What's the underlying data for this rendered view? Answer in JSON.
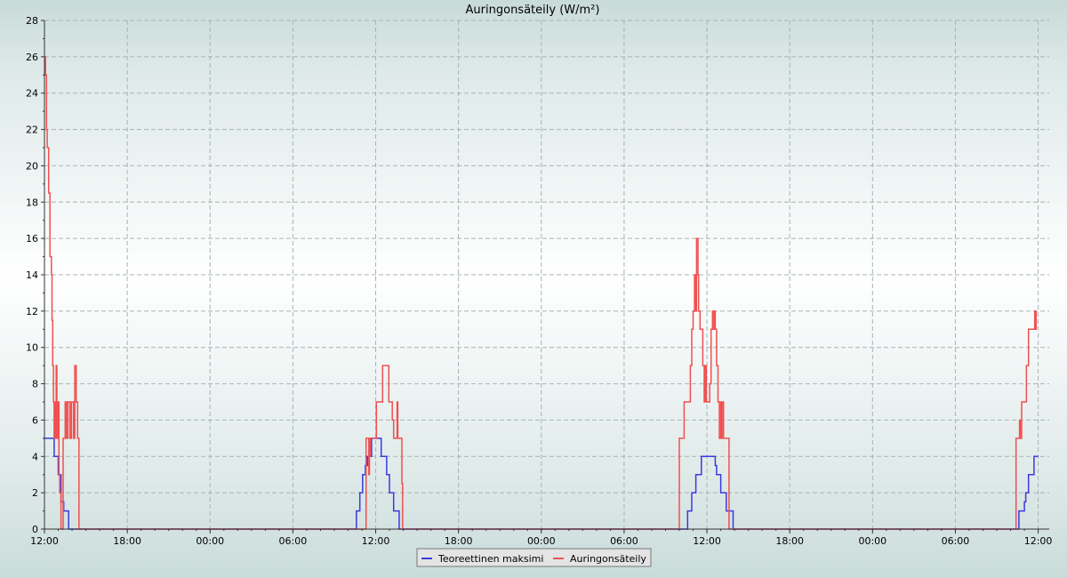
{
  "chart_data": {
    "type": "line",
    "title": "Auringonsäteily (W/m²)",
    "xlabel": "",
    "ylabel": "",
    "ylim": [
      0,
      28
    ],
    "yticks": [
      0,
      2,
      4,
      6,
      8,
      10,
      12,
      14,
      16,
      18,
      20,
      22,
      24,
      26,
      28
    ],
    "x_range_hours": [
      0,
      72.8
    ],
    "xticks": [
      {
        "h": 0,
        "label": "12:00"
      },
      {
        "h": 6,
        "label": "18:00"
      },
      {
        "h": 12,
        "label": "00:00"
      },
      {
        "h": 18,
        "label": "06:00"
      },
      {
        "h": 24,
        "label": "12:00"
      },
      {
        "h": 30,
        "label": "18:00"
      },
      {
        "h": 36,
        "label": "00:00"
      },
      {
        "h": 42,
        "label": "06:00"
      },
      {
        "h": 48,
        "label": "12:00"
      },
      {
        "h": 54,
        "label": "18:00"
      },
      {
        "h": 60,
        "label": "00:00"
      },
      {
        "h": 66,
        "label": "06:00"
      },
      {
        "h": 72,
        "label": "12:00"
      }
    ],
    "grid": true,
    "legend_position": "bottom-center",
    "series": [
      {
        "name": "Teoreettinen maksimi",
        "color": "#3a3ae0",
        "step": true,
        "points": [
          [
            0,
            5
          ],
          [
            0.7,
            5
          ],
          [
            0.7,
            4
          ],
          [
            1.0,
            4
          ],
          [
            1.0,
            3
          ],
          [
            1.2,
            3
          ],
          [
            1.2,
            1.5
          ],
          [
            1.4,
            1.5
          ],
          [
            1.4,
            1
          ],
          [
            1.75,
            1
          ],
          [
            1.75,
            0
          ],
          [
            22.6,
            0
          ],
          [
            22.6,
            1
          ],
          [
            22.85,
            1
          ],
          [
            22.85,
            2
          ],
          [
            23.05,
            2
          ],
          [
            23.05,
            3
          ],
          [
            23.25,
            3
          ],
          [
            23.25,
            3.5
          ],
          [
            23.4,
            3.5
          ],
          [
            23.4,
            4
          ],
          [
            23.7,
            4
          ],
          [
            23.7,
            5
          ],
          [
            24.4,
            5
          ],
          [
            24.4,
            4
          ],
          [
            24.8,
            4
          ],
          [
            24.8,
            3
          ],
          [
            25.0,
            3
          ],
          [
            25.0,
            2
          ],
          [
            25.3,
            2
          ],
          [
            25.3,
            1
          ],
          [
            25.7,
            1
          ],
          [
            25.7,
            0
          ],
          [
            46.6,
            0
          ],
          [
            46.6,
            1
          ],
          [
            46.9,
            1
          ],
          [
            46.9,
            2
          ],
          [
            47.2,
            2
          ],
          [
            47.2,
            3
          ],
          [
            47.6,
            3
          ],
          [
            47.6,
            4
          ],
          [
            48.6,
            4
          ],
          [
            48.6,
            3.5
          ],
          [
            48.7,
            3.5
          ],
          [
            48.7,
            3
          ],
          [
            49.0,
            3
          ],
          [
            49.0,
            2
          ],
          [
            49.4,
            2
          ],
          [
            49.4,
            1
          ],
          [
            49.9,
            1
          ],
          [
            49.9,
            0
          ],
          [
            70.6,
            0
          ],
          [
            70.6,
            1
          ],
          [
            71.0,
            1
          ],
          [
            71.0,
            1.5
          ],
          [
            71.1,
            1.5
          ],
          [
            71.1,
            2
          ],
          [
            71.3,
            2
          ],
          [
            71.3,
            3
          ],
          [
            71.7,
            3
          ],
          [
            71.7,
            4
          ],
          [
            72.0,
            4
          ]
        ]
      },
      {
        "name": "Auringonsäteily",
        "color": "#f05050",
        "step": true,
        "points": [
          [
            0,
            26
          ],
          [
            0.08,
            26
          ],
          [
            0.08,
            25
          ],
          [
            0.15,
            25
          ],
          [
            0.15,
            22
          ],
          [
            0.2,
            22
          ],
          [
            0.2,
            21
          ],
          [
            0.3,
            21
          ],
          [
            0.3,
            18.5
          ],
          [
            0.4,
            18.5
          ],
          [
            0.4,
            15
          ],
          [
            0.5,
            15
          ],
          [
            0.5,
            14
          ],
          [
            0.55,
            14
          ],
          [
            0.55,
            11.5
          ],
          [
            0.6,
            11.5
          ],
          [
            0.6,
            9
          ],
          [
            0.65,
            9
          ],
          [
            0.65,
            7
          ],
          [
            0.7,
            7
          ],
          [
            0.7,
            5
          ],
          [
            0.75,
            5
          ],
          [
            0.75,
            7
          ],
          [
            0.8,
            7
          ],
          [
            0.8,
            5
          ],
          [
            0.85,
            5
          ],
          [
            0.85,
            9
          ],
          [
            0.9,
            9
          ],
          [
            0.9,
            5
          ],
          [
            1.0,
            5
          ],
          [
            1.0,
            7
          ],
          [
            1.05,
            7
          ],
          [
            1.05,
            3
          ],
          [
            1.1,
            3
          ],
          [
            1.1,
            2
          ],
          [
            1.2,
            2
          ],
          [
            1.2,
            0
          ],
          [
            1.35,
            0
          ],
          [
            1.35,
            5
          ],
          [
            1.5,
            5
          ],
          [
            1.5,
            7
          ],
          [
            1.6,
            7
          ],
          [
            1.6,
            5
          ],
          [
            1.7,
            5
          ],
          [
            1.7,
            7
          ],
          [
            1.85,
            7
          ],
          [
            1.85,
            5
          ],
          [
            1.95,
            5
          ],
          [
            1.95,
            7
          ],
          [
            2.1,
            7
          ],
          [
            2.1,
            5
          ],
          [
            2.2,
            5
          ],
          [
            2.2,
            9
          ],
          [
            2.3,
            9
          ],
          [
            2.3,
            7
          ],
          [
            2.4,
            7
          ],
          [
            2.4,
            5
          ],
          [
            2.5,
            5
          ],
          [
            2.5,
            0
          ],
          [
            23.3,
            0
          ],
          [
            23.3,
            5
          ],
          [
            23.5,
            5
          ],
          [
            23.5,
            3
          ],
          [
            23.55,
            3
          ],
          [
            23.55,
            4
          ],
          [
            23.6,
            4
          ],
          [
            23.6,
            5
          ],
          [
            24.05,
            5
          ],
          [
            24.05,
            7
          ],
          [
            24.5,
            7
          ],
          [
            24.5,
            9
          ],
          [
            24.95,
            9
          ],
          [
            24.95,
            7
          ],
          [
            25.2,
            7
          ],
          [
            25.2,
            6
          ],
          [
            25.3,
            6
          ],
          [
            25.3,
            5
          ],
          [
            25.55,
            5
          ],
          [
            25.55,
            7
          ],
          [
            25.6,
            7
          ],
          [
            25.6,
            5
          ],
          [
            25.9,
            5
          ],
          [
            25.9,
            2.5
          ],
          [
            25.95,
            2.5
          ],
          [
            25.95,
            0
          ],
          [
            46.0,
            0
          ],
          [
            46.0,
            5
          ],
          [
            46.35,
            5
          ],
          [
            46.35,
            7
          ],
          [
            46.8,
            7
          ],
          [
            46.8,
            9
          ],
          [
            46.9,
            9
          ],
          [
            46.9,
            11
          ],
          [
            47.0,
            11
          ],
          [
            47.0,
            12
          ],
          [
            47.1,
            12
          ],
          [
            47.1,
            14
          ],
          [
            47.2,
            14
          ],
          [
            47.2,
            12
          ],
          [
            47.25,
            12
          ],
          [
            47.25,
            16
          ],
          [
            47.35,
            16
          ],
          [
            47.35,
            14
          ],
          [
            47.4,
            14
          ],
          [
            47.4,
            12
          ],
          [
            47.5,
            12
          ],
          [
            47.5,
            11
          ],
          [
            47.7,
            11
          ],
          [
            47.7,
            9
          ],
          [
            47.8,
            9
          ],
          [
            47.8,
            7
          ],
          [
            47.9,
            7
          ],
          [
            47.9,
            9
          ],
          [
            47.95,
            9
          ],
          [
            47.95,
            7
          ],
          [
            48.2,
            7
          ],
          [
            48.2,
            8
          ],
          [
            48.3,
            8
          ],
          [
            48.3,
            11
          ],
          [
            48.4,
            11
          ],
          [
            48.4,
            12
          ],
          [
            48.45,
            12
          ],
          [
            48.45,
            11
          ],
          [
            48.55,
            11
          ],
          [
            48.55,
            12
          ],
          [
            48.6,
            12
          ],
          [
            48.6,
            11
          ],
          [
            48.7,
            11
          ],
          [
            48.7,
            9
          ],
          [
            48.8,
            9
          ],
          [
            48.8,
            7
          ],
          [
            48.9,
            7
          ],
          [
            48.9,
            5
          ],
          [
            49.0,
            5
          ],
          [
            49.0,
            7
          ],
          [
            49.05,
            7
          ],
          [
            49.05,
            5
          ],
          [
            49.1,
            5
          ],
          [
            49.1,
            7
          ],
          [
            49.2,
            7
          ],
          [
            49.2,
            5
          ],
          [
            49.6,
            5
          ],
          [
            49.6,
            0
          ],
          [
            70.4,
            0
          ],
          [
            70.4,
            5
          ],
          [
            70.65,
            5
          ],
          [
            70.65,
            6
          ],
          [
            70.7,
            6
          ],
          [
            70.7,
            5
          ],
          [
            70.8,
            5
          ],
          [
            70.8,
            7
          ],
          [
            71.15,
            7
          ],
          [
            71.15,
            9
          ],
          [
            71.3,
            9
          ],
          [
            71.3,
            11
          ],
          [
            71.75,
            11
          ],
          [
            71.75,
            12
          ],
          [
            71.8,
            12
          ],
          [
            71.8,
            11
          ],
          [
            71.85,
            11
          ],
          [
            71.85,
            12
          ]
        ]
      }
    ]
  }
}
